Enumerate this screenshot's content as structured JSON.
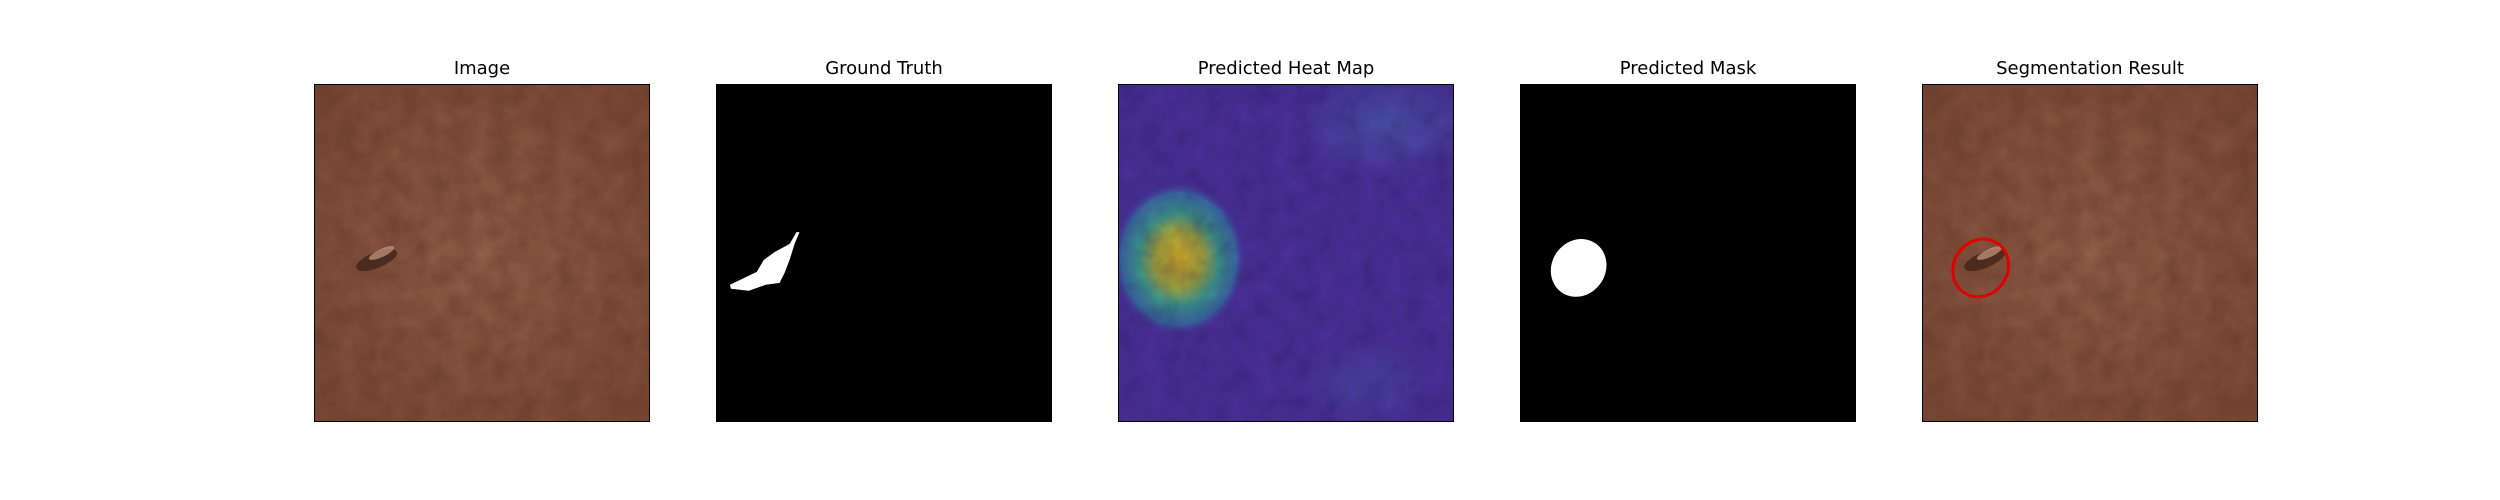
{
  "panels": [
    {
      "title": "Image"
    },
    {
      "title": "Ground Truth"
    },
    {
      "title": "Predicted Heat Map"
    },
    {
      "title": "Predicted Mask"
    },
    {
      "title": "Segmentation Result"
    }
  ],
  "colors": {
    "leather": "#8a5641",
    "mask_background": "#000000",
    "mask_foreground": "#ffffff",
    "heatmap_low": "#4a2f9a",
    "heatmap_high": "#d4a81c",
    "contour": "#e00000"
  }
}
